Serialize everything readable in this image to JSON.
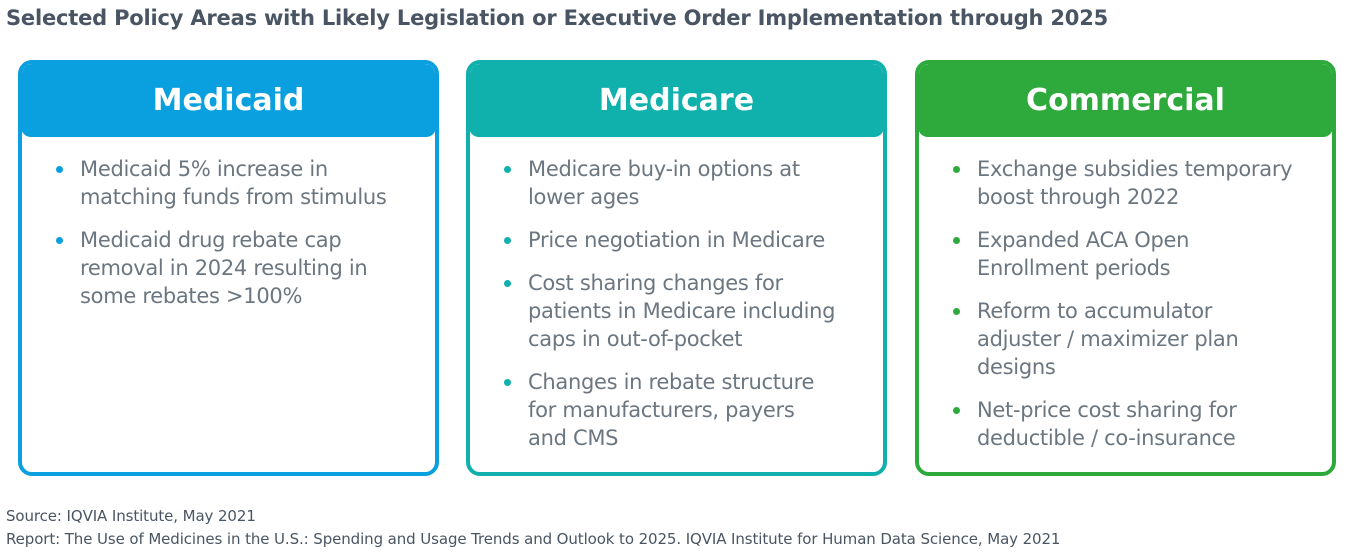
{
  "title": "Selected Policy Areas with Likely Legislation or Executive Order Implementation through 2025",
  "colors": {
    "medicaid": "#0aa0df",
    "medicare": "#10b0ad",
    "commercial": "#2eaa3c"
  },
  "cards": [
    {
      "header": "Medicaid",
      "items": [
        [
          "Medicaid 5% increase in",
          "matching funds from stimulus"
        ],
        [
          "Medicaid drug rebate cap",
          "removal in 2024 resulting in",
          "some rebates >100%"
        ]
      ]
    },
    {
      "header": "Medicare",
      "items": [
        [
          "Medicare buy-in options at",
          "lower ages"
        ],
        [
          "Price negotiation in Medicare"
        ],
        [
          "Cost sharing changes for",
          "patients in Medicare including",
          "caps in out-of-pocket"
        ],
        [
          "Changes in rebate structure",
          "for manufacturers, payers",
          "and CMS"
        ]
      ]
    },
    {
      "header": "Commercial",
      "items": [
        [
          "Exchange subsidies temporary",
          "boost through 2022"
        ],
        [
          "Expanded ACA Open",
          "Enrollment periods"
        ],
        [
          "Reform to accumulator",
          "adjuster / maximizer plan",
          "designs"
        ],
        [
          "Net-price cost sharing for",
          "deductible / co-insurance"
        ]
      ]
    }
  ],
  "source": "Source: IQVIA Institute, May 2021",
  "report": "Report: The Use of Medicines in the U.S.: Spending and Usage Trends and Outlook to 2025. IQVIA Institute for Human Data Science, May 2021"
}
